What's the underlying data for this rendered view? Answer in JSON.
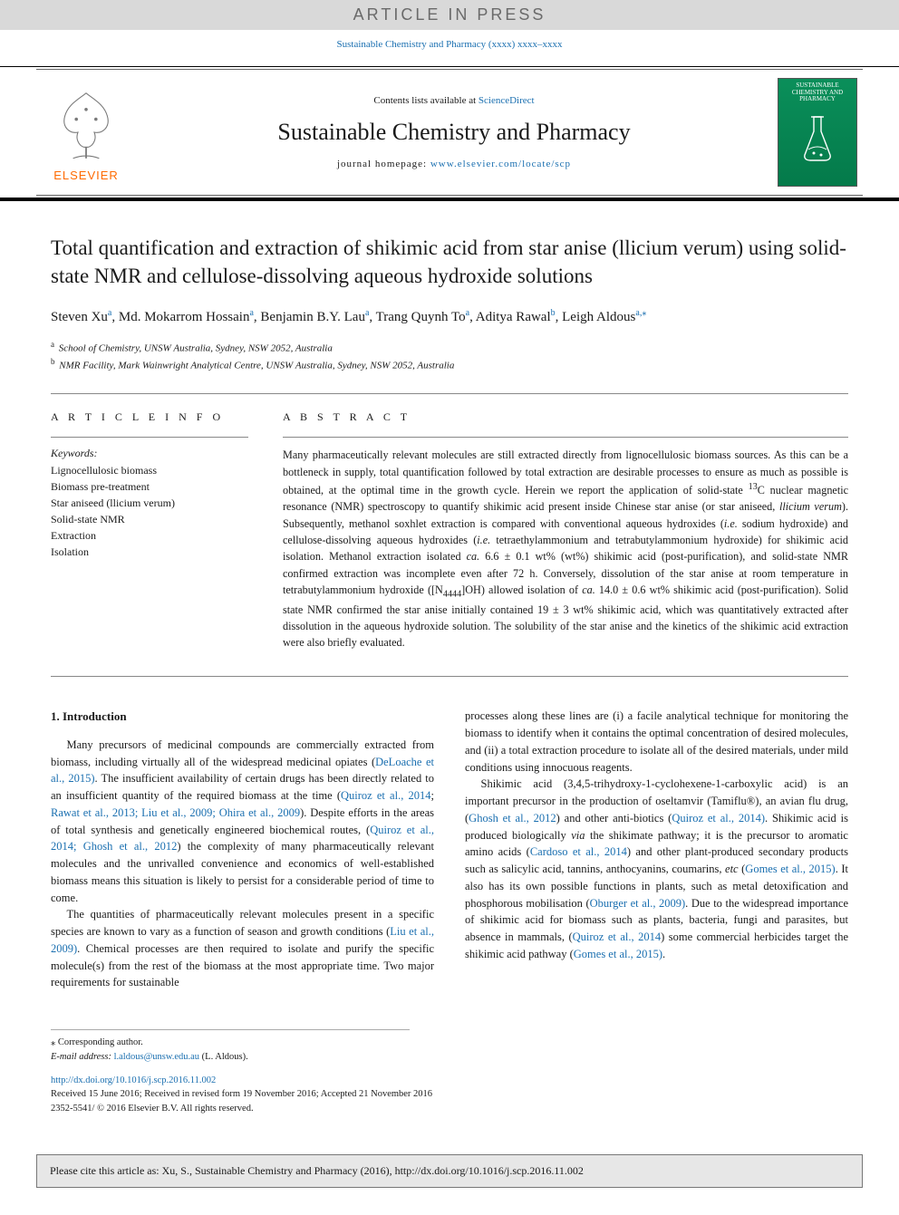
{
  "banner": "ARTICLE IN PRESS",
  "journal_ref_link": "Sustainable Chemistry and Pharmacy  (xxxx) xxxx–xxxx",
  "masthead": {
    "contents_prefix": "Contents lists available at ",
    "contents_link": "ScienceDirect",
    "journal_name": "Sustainable Chemistry and Pharmacy",
    "homepage_prefix": "journal homepage: ",
    "homepage_link": "www.elsevier.com/locate/scp",
    "publisher_word": "ELSEVIER",
    "cover_text": "SUSTAINABLE CHEMISTRY AND PHARMACY"
  },
  "title": "Total quantification and extraction of shikimic acid from star anise (llicium verum) using solid-state NMR and cellulose-dissolving aqueous hydroxide solutions",
  "authors_html": "Steven Xu<sup>a</sup>, Md. Mokarrom Hossain<sup>a</sup>, Benjamin B.Y. Lau<sup>a</sup>, Trang Quynh To<sup>a</sup>, Aditya Rawal<sup>b</sup>, Leigh Aldous<sup>a,</sup><sup>⁎</sup>",
  "affiliations": [
    {
      "sup": "a",
      "text": "School of Chemistry, UNSW Australia, Sydney, NSW 2052, Australia"
    },
    {
      "sup": "b",
      "text": "NMR Facility, Mark Wainwright Analytical Centre, UNSW Australia, Sydney, NSW 2052, Australia"
    }
  ],
  "article_info": {
    "heading": "A R T I C L E  I N F O",
    "keywords_label": "Keywords:",
    "keywords": [
      "Lignocellulosic biomass",
      "Biomass pre-treatment",
      "Star aniseed (llicium verum)",
      "Solid-state NMR",
      "Extraction",
      "Isolation"
    ]
  },
  "abstract": {
    "heading": "A B S T R A C T",
    "text_html": "Many pharmaceutically relevant molecules are still extracted directly from lignocellulosic biomass sources. As this can be a bottleneck in supply, total quantification followed by total extraction are desirable processes to ensure as much as possible is obtained, at the optimal time in the growth cycle. Herein we report the application of solid-state <sup>13</sup>C nuclear magnetic resonance (NMR) spectroscopy to quantify shikimic acid present inside Chinese star anise (or star aniseed, <i>llicium verum</i>). Subsequently, methanol soxhlet extraction is compared with conventional aqueous hydroxides (<i>i.e.</i> sodium hydroxide) and cellulose-dissolving aqueous hydroxides (<i>i.e.</i> tetraethylammonium and tetrabutylammonium hydroxide) for shikimic acid isolation. Methanol extraction isolated <i>ca.</i> 6.6 ± 0.1 wt% (wt%) shikimic acid (post-purification), and solid-state NMR confirmed extraction was incomplete even after 72 h. Conversely, dissolution of the star anise at room temperature in tetrabutylammonium hydroxide ([N<sub>4444</sub>]OH) allowed isolation of <i>ca.</i> 14.0 ± 0.6 wt% shikimic acid (post-purification). Solid state NMR confirmed the star anise initially contained 19 ± 3 wt% shikimic acid, which was quantitatively extracted after dissolution in the aqueous hydroxide solution. The solubility of the star anise and the kinetics of the shikimic acid extraction were also briefly evaluated."
  },
  "body": {
    "section_heading": "1. Introduction",
    "p1_html": "Many precursors of medicinal compounds are commercially extracted from biomass, including virtually all of the widespread medicinal opiates (<span class=\"cite\">DeLoache et al., 2015)</span>. The insufficient availability of certain drugs has been directly related to an insufficient quantity of the required biomass at the time (<span class=\"cite\">Quiroz et al., 2014</span>; <span class=\"cite\">Rawat et al., 2013; Liu et al., 2009; Ohira et al., 2009</span>). Despite efforts in the areas of total synthesis and genetically engineered biochemical routes, (<span class=\"cite\">Quiroz et al., 2014; Ghosh et al., 2012</span>) the complexity of many pharmaceutically relevant molecules and the unrivalled convenience and economics of well-established biomass means this situation is likely to persist for a considerable period of time to come.",
    "p2_html": "The quantities of pharmaceutically relevant molecules present in a specific species are known to vary as a function of season and growth conditions (<span class=\"cite\">Liu et al., 2009)</span>. Chemical processes are then required to isolate and purify the specific molecule(s) from the rest of the biomass at the most appropriate time. Two major requirements for sustainable",
    "p3_html": "processes along these lines are (i) a facile analytical technique for monitoring the biomass to identify when it contains the optimal concentration of desired molecules, and (ii) a total extraction procedure to isolate all of the desired materials, under mild conditions using innocuous reagents.",
    "p4_html": "Shikimic acid (3,4,5-trihydroxy-1-cyclohexene-1-carboxylic acid) is an important precursor in the production of oseltamvir (Tamiflu®), an avian flu drug, (<span class=\"cite\">Ghosh et al., 2012</span>) and other anti-biotics (<span class=\"cite\">Quiroz et al., 2014)</span>. Shikimic acid is produced biologically <i>via</i> the shikimate pathway; it is the precursor to aromatic amino acids (<span class=\"cite\">Cardoso et al., 2014</span>) and other plant-produced secondary products such as salicylic acid, tannins, anthocyanins, coumarins, <i>etc</i> (<span class=\"cite\">Gomes et al., 2015)</span>. It also has its own possible functions in plants, such as metal detoxification and phosphorous mobilisation (<span class=\"cite\">Oburger et al., 2009)</span>. Due to the widespread importance of shikimic acid for biomass such as plants, bacteria, fungi and parasites, but absence in mammals, (<span class=\"cite\">Quiroz et al., 2014</span>) some commercial herbicides target the shikimic acid pathway (<span class=\"cite\">Gomes et al., 2015)</span>."
  },
  "footnotes": {
    "corr": "⁎ Corresponding author.",
    "email_label": "E-mail address: ",
    "email": "l.aldous@unsw.edu.au",
    "email_suffix": " (L. Aldous)."
  },
  "doi": {
    "doi_link": "http://dx.doi.org/10.1016/j.scp.2016.11.002",
    "history": "Received 15 June 2016; Received in revised form 19 November 2016; Accepted 21 November 2016",
    "issn_cr": "2352-5541/ © 2016 Elsevier B.V. All rights reserved."
  },
  "cite_box": "Please cite this article as: Xu, S., Sustainable Chemistry and Pharmacy (2016), http://dx.doi.org/10.1016/j.scp.2016.11.002",
  "colors": {
    "link": "#1a6fb0",
    "banner_bg": "#d9d9d9",
    "banner_fg": "#6a6a6a",
    "elsevier_orange": "#ff6a00",
    "cover_bg": "#0a8f5a",
    "citebox_bg": "#e7e7e7"
  }
}
